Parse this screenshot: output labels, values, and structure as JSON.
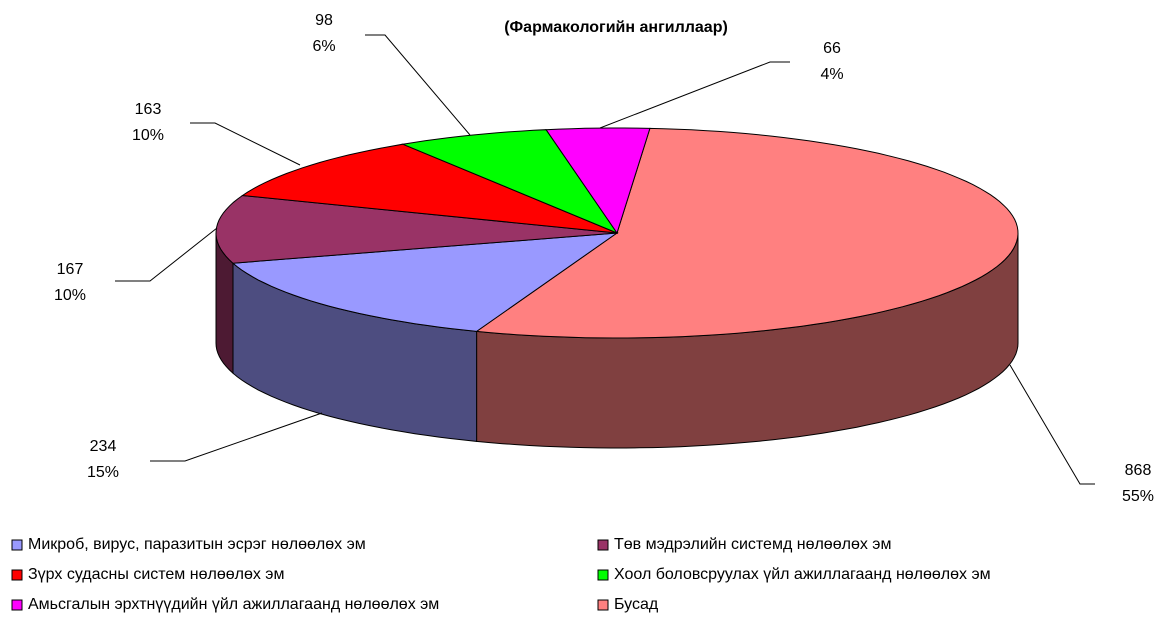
{
  "chart_data": {
    "type": "pie3d",
    "title": "(Фармакологийн ангиллаар)",
    "categories": [
      "Микроб, вирус, паразитын эсрэг нөлөөлөх эм",
      "Төв мэдрэлийн системд нөлөөлөх эм",
      "Зүрх судасны систем нөлөөлөх эм",
      "Хоол боловсруулах үйл ажиллагаанд нөлөөлөх эм",
      "Амьсгалын эрхтнүүдийн үйл ажиллагаанд нөлөөлөх эм",
      "Бусад"
    ],
    "values": [
      234,
      167,
      163,
      98,
      66,
      868
    ],
    "percents": [
      15,
      10,
      10,
      6,
      4,
      55
    ],
    "percent_labels": [
      "15%",
      "10%",
      "10%",
      "6%",
      "4%",
      "55%"
    ],
    "colors": [
      "#9999ff",
      "#993366",
      "#ff0000",
      "#00ff00",
      "#ff00ff",
      "#ff8080"
    ]
  }
}
